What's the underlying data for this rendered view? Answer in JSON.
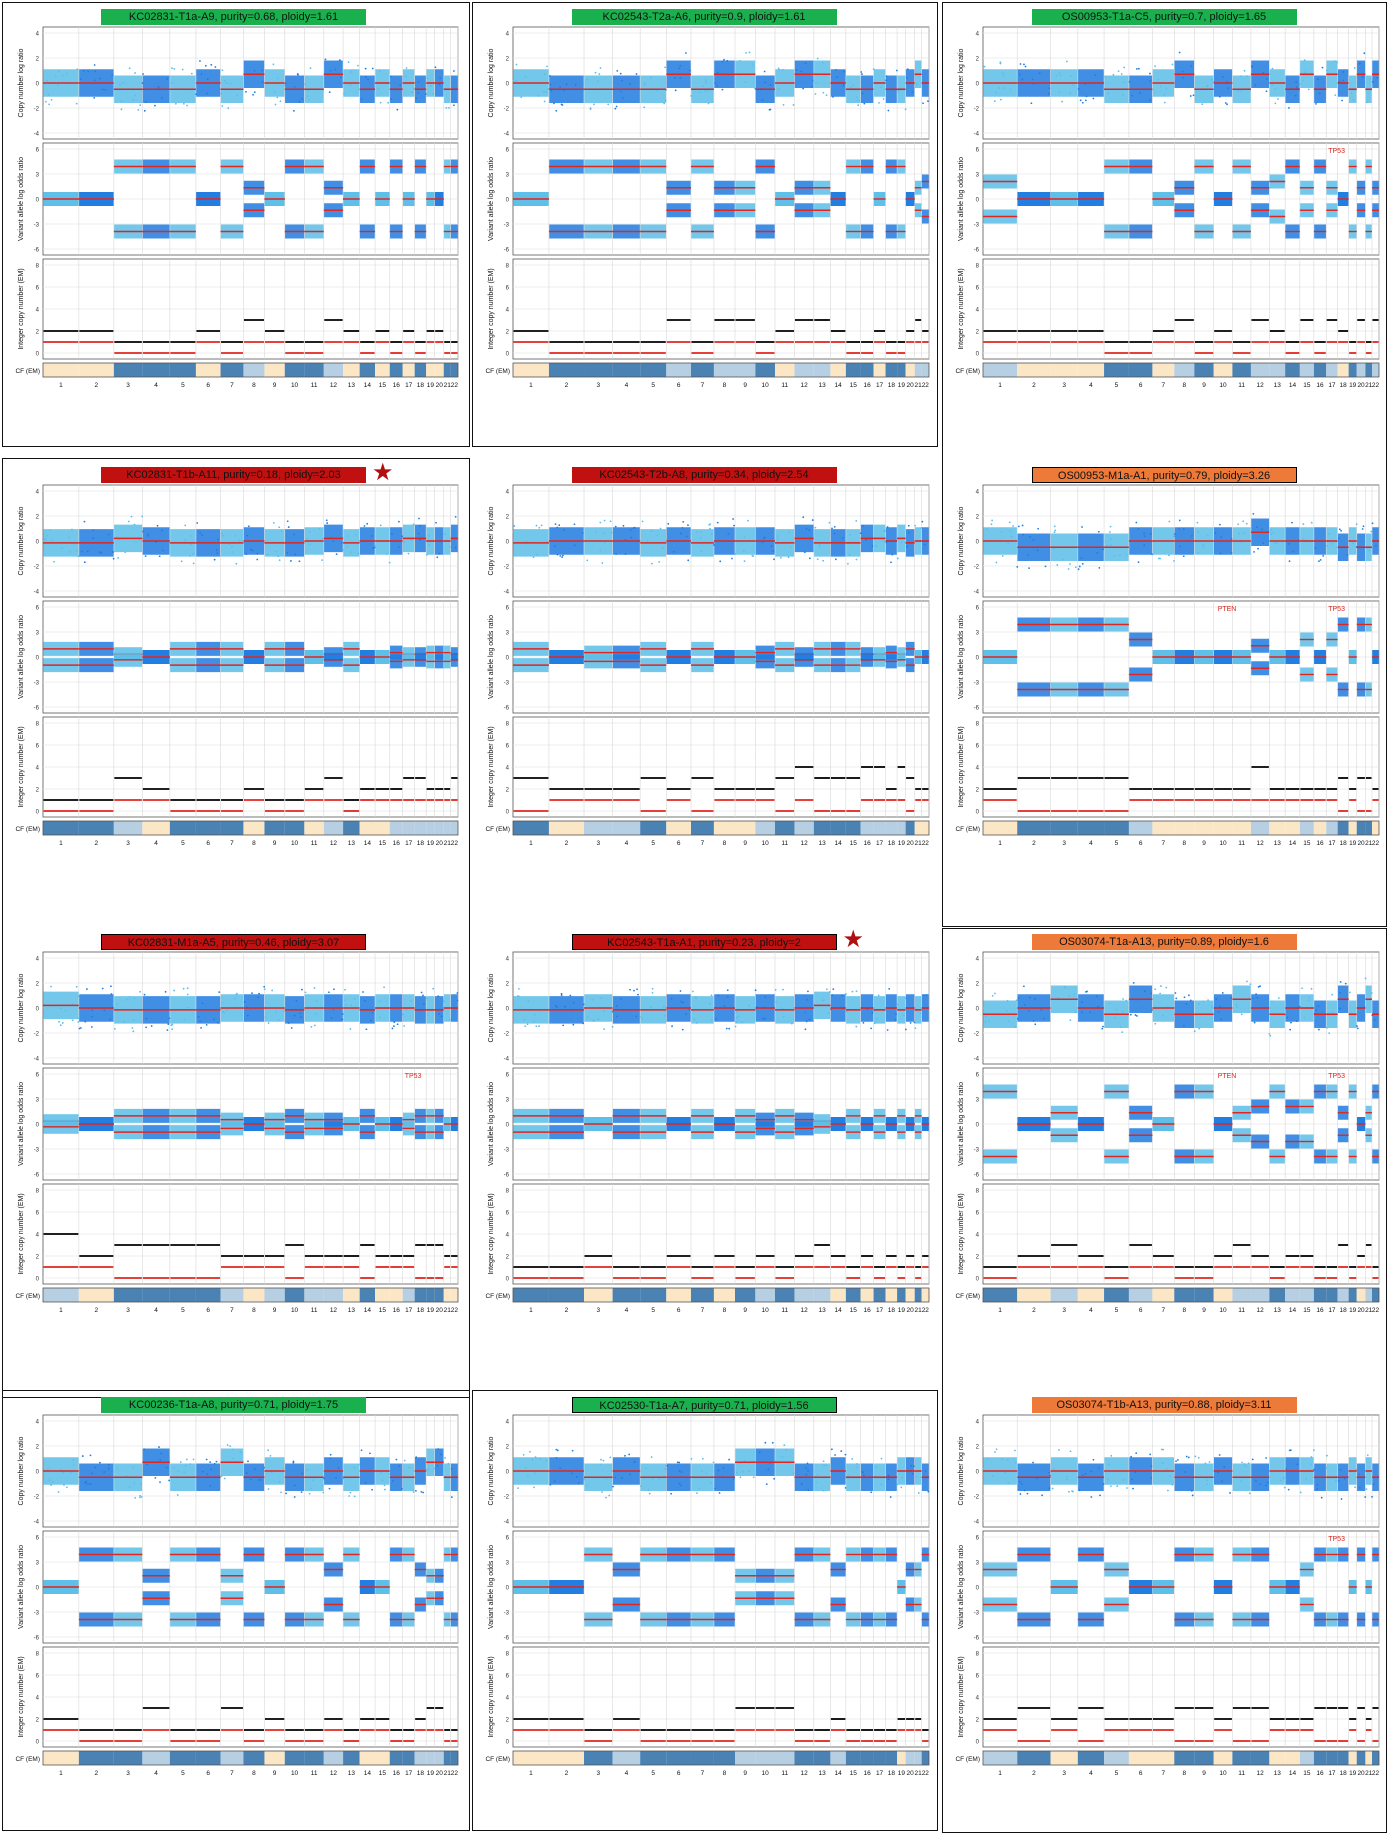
{
  "colors": {
    "green": "#1ab04e",
    "red": "#c0100f",
    "orange": "#ee7a3a",
    "cnlr_light": "#5bbde8",
    "cnlr_dark": "#1f7be0",
    "segment": "#e0261f",
    "total_cn": "#000000",
    "minor_cn": "#e0261f",
    "cf_dark": "#4a82b4",
    "cf_light": "#b7cfe3",
    "cf_cream": "#fbe7c6"
  },
  "axis_labels": {
    "cnlr": "Copy number log ratio",
    "valor": "Variant allele log odds ratio",
    "icn": "Integer copy number (EM)",
    "cf": "CF (EM)"
  },
  "y_ticks": {
    "cnlr": [
      "4",
      "2",
      "0",
      "-2",
      "-4"
    ],
    "valor": [
      "6",
      "3",
      "0",
      "-3",
      "-6"
    ],
    "icn": [
      "8",
      "6",
      "4",
      "2",
      "0"
    ]
  },
  "chromosome_labels": [
    "1",
    "2",
    "3",
    "4",
    "5",
    "6",
    "7",
    "8",
    "9",
    "10",
    "11",
    "12",
    "13",
    "14",
    "15",
    "16",
    "17",
    "18",
    "19",
    "20",
    "21",
    "22"
  ],
  "chromosome_label_row": "1  2  3  4  5  6  7  8  9  10  11  12  13  14  15  16  17  18  19202122",
  "gene_labels": {
    "tp53": "TP53",
    "pten": "PTEN"
  },
  "chart_data": [
    {
      "type": "scatter",
      "title": "KC02831-T1a-A9, purity=0.68, ploidy=1.61",
      "title_color": "green",
      "boxed": false,
      "starred": false,
      "purity": 0.68,
      "ploidy": 1.61,
      "genes": []
    },
    {
      "type": "scatter",
      "title": "KC02543-T2a-A6, purity=0.9, ploidy=1.61",
      "title_color": "green",
      "boxed": false,
      "starred": false,
      "purity": 0.9,
      "ploidy": 1.61,
      "genes": []
    },
    {
      "type": "scatter",
      "title": "OS00953-T1a-C5, purity=0.7, ploidy=1.65",
      "title_color": "green",
      "boxed": false,
      "starred": false,
      "purity": 0.7,
      "ploidy": 1.65,
      "genes": [
        "TP53"
      ]
    },
    {
      "type": "scatter",
      "title": "KC02831-T1b-A11, purity=0.18, ploidy=2.03",
      "title_color": "red",
      "boxed": false,
      "starred": true,
      "purity": 0.18,
      "ploidy": 2.03,
      "genes": []
    },
    {
      "type": "scatter",
      "title": "KC02543-T2b-A8, purity=0.34, ploidy=2.54",
      "title_color": "red",
      "boxed": false,
      "starred": false,
      "purity": 0.34,
      "ploidy": 2.54,
      "genes": []
    },
    {
      "type": "scatter",
      "title": "OS00953-M1a-A1, purity=0.79, ploidy=3.26",
      "title_color": "orange",
      "boxed": true,
      "starred": false,
      "purity": 0.79,
      "ploidy": 3.26,
      "genes": [
        "PTEN",
        "TP53"
      ]
    },
    {
      "type": "scatter",
      "title": "KC02831-M1a-A5, purity=0.46, ploidy=3.07",
      "title_color": "red",
      "boxed": true,
      "starred": false,
      "purity": 0.46,
      "ploidy": 3.07,
      "genes": [
        "TP53"
      ]
    },
    {
      "type": "scatter",
      "title": "KC02543-T1a-A1, purity=0.23, ploidy=2",
      "title_color": "red",
      "boxed": true,
      "starred": true,
      "purity": 0.23,
      "ploidy": 2,
      "genes": []
    },
    {
      "type": "scatter",
      "title": "OS03074-T1a-A13, purity=0.89, ploidy=1.6",
      "title_color": "orange",
      "boxed": false,
      "starred": false,
      "purity": 0.89,
      "ploidy": 1.6,
      "genes": [
        "PTEN",
        "TP53"
      ]
    },
    {
      "type": "scatter",
      "title": "KC00236-T1a-A8, purity=0.71, ploidy=1.75",
      "title_color": "green",
      "boxed": false,
      "starred": false,
      "purity": 0.71,
      "ploidy": 1.75,
      "genes": []
    },
    {
      "type": "scatter",
      "title": "KC02530-T1a-A7, purity=0.71, ploidy=1.56",
      "title_color": "green",
      "boxed": true,
      "starred": false,
      "purity": 0.71,
      "ploidy": 1.56,
      "genes": []
    },
    {
      "type": "scatter",
      "title": "OS03074-T1b-A13, purity=0.88, ploidy=3.11",
      "title_color": "orange",
      "boxed": false,
      "starred": false,
      "purity": 0.88,
      "ploidy": 3.11,
      "genes": [
        "TP53"
      ]
    }
  ],
  "star_glyph": "★"
}
